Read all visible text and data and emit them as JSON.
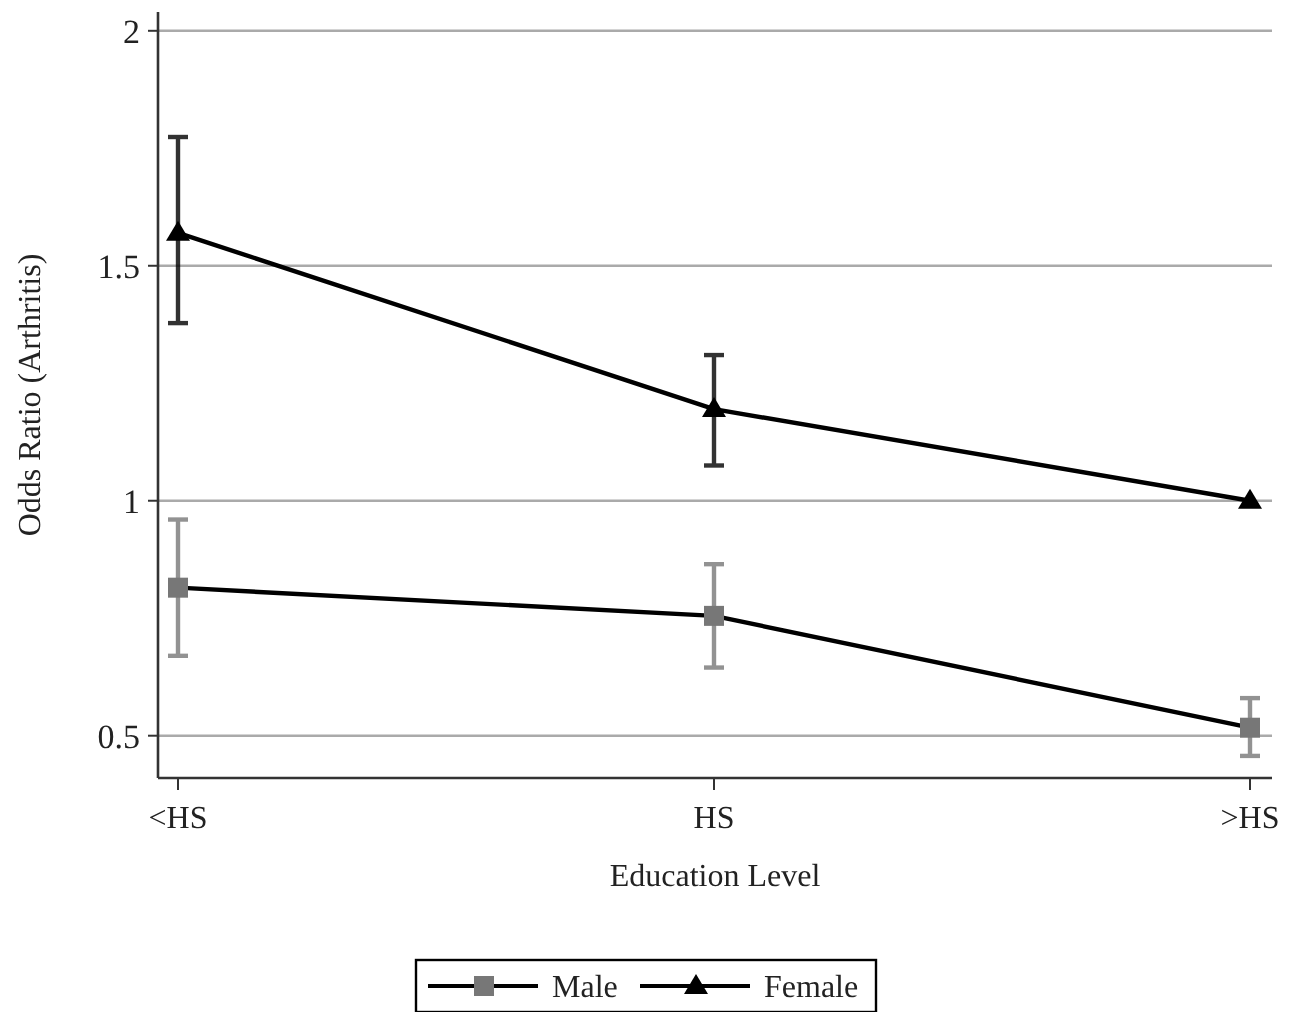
{
  "chart_data": {
    "type": "line",
    "xlabel": "Education Level",
    "ylabel": "Odds Ratio (Arthritis)",
    "categories": [
      "<HS",
      "HS",
      ">HS"
    ],
    "series": [
      {
        "name": "Male",
        "color": "#777777",
        "marker": "square",
        "values": [
          0.815,
          0.755,
          0.517
        ],
        "errors": [
          [
            0.67,
            0.96
          ],
          [
            0.645,
            0.865
          ],
          [
            0.457,
            0.58
          ]
        ]
      },
      {
        "name": "Female",
        "color": "#000000",
        "marker": "triangle",
        "values": [
          1.57,
          1.195,
          1.0
        ],
        "errors": [
          [
            1.378,
            1.774
          ],
          [
            1.075,
            1.31
          ],
          null
        ]
      }
    ],
    "ylim": [
      0.41,
      2.04
    ],
    "yticks": [
      0.5,
      1,
      1.5,
      2
    ],
    "grid": "y",
    "legend": "bottom",
    "line_style": "solid"
  }
}
